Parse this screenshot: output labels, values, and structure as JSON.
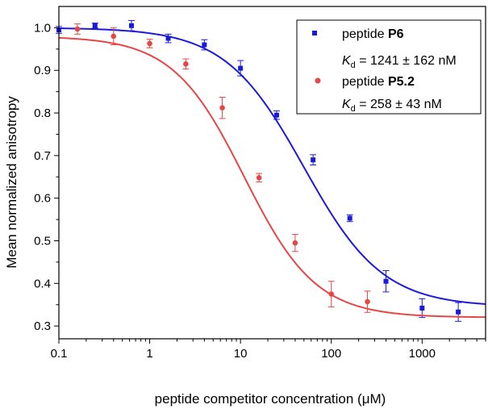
{
  "chart_data": {
    "type": "scatter",
    "xscale": "log",
    "xlabel": "peptide competitor concentration (μM)",
    "ylabel": "Mean normalized anisotropy",
    "xlim": [
      0.1,
      5000
    ],
    "ylim": [
      0.27,
      1.05
    ],
    "xticks": [
      0.1,
      1,
      10,
      100,
      1000
    ],
    "xtick_labels": [
      "0.1",
      "1",
      "10",
      "100",
      "1000"
    ],
    "yticks": [
      0.3,
      0.4,
      0.5,
      0.6,
      0.7,
      0.8,
      0.9,
      1.0
    ],
    "ytick_labels": [
      "0.3",
      "0.4",
      "0.5",
      "0.6",
      "0.7",
      "0.8",
      "0.9",
      "1.0"
    ],
    "grid": false,
    "legend_position": "top-right",
    "series": [
      {
        "name": "peptide P6",
        "prefix": "peptide ",
        "bold": "P6",
        "kd_symbol": "K",
        "kd_sub": "d",
        "kd_value": " = 1241 ± 162 nM",
        "color": "#1a1adc",
        "marker": "square",
        "x": [
          0.1,
          0.25,
          0.63,
          1.6,
          4.0,
          10,
          25,
          63,
          160,
          400,
          1000,
          2500
        ],
        "y": [
          0.995,
          1.005,
          1.005,
          0.975,
          0.96,
          0.905,
          0.795,
          0.69,
          0.553,
          0.405,
          0.342,
          0.333
        ],
        "err": [
          0.008,
          0.006,
          0.012,
          0.01,
          0.012,
          0.018,
          0.01,
          0.012,
          0.008,
          0.025,
          0.022,
          0.022
        ],
        "fit": {
          "top": 1.0,
          "bottom": 0.345,
          "ec50": 50,
          "hill": 1.0
        }
      },
      {
        "name": "peptide P5.2",
        "prefix": "peptide ",
        "bold": "P5.2",
        "kd_symbol": "K",
        "kd_sub": "d",
        "kd_value": " = 258 ± 43 nM",
        "color": "#e64646",
        "marker": "circle",
        "x": [
          0.16,
          0.4,
          1.0,
          2.5,
          6.3,
          16,
          40,
          100,
          250
        ],
        "y": [
          0.997,
          0.98,
          0.963,
          0.915,
          0.812,
          0.648,
          0.495,
          0.375,
          0.357
        ],
        "err": [
          0.012,
          0.02,
          0.01,
          0.012,
          0.025,
          0.01,
          0.02,
          0.03,
          0.025
        ],
        "fit": {
          "top": 0.98,
          "bottom": 0.32,
          "ec50": 11,
          "hill": 1.1
        }
      }
    ]
  }
}
